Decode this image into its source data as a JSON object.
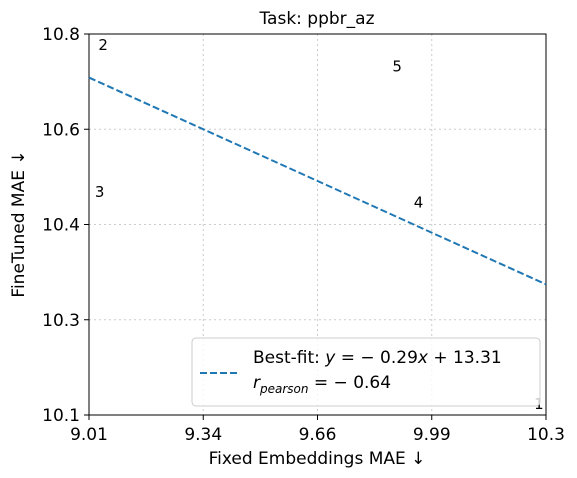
{
  "chart_data": {
    "type": "scatter",
    "title": "Task: ppbr_az",
    "xlabel": "Fixed Embeddings MAE ↓",
    "ylabel": "FineTuned MAE ↓",
    "xlim": [
      9.01,
      10.3
    ],
    "ylim": [
      10.1,
      10.8
    ],
    "x_ticks": [
      "9.01",
      "9.34",
      "9.66",
      "9.99",
      "10.3"
    ],
    "y_ticks": [
      "10.1",
      "10.3",
      "10.4",
      "10.6",
      "10.8"
    ],
    "grid": true,
    "points": [
      {
        "label": "1",
        "x": 10.28,
        "y": 10.12
      },
      {
        "label": "2",
        "x": 9.05,
        "y": 10.78
      },
      {
        "label": "3",
        "x": 9.04,
        "y": 10.51
      },
      {
        "label": "4",
        "x": 9.94,
        "y": 10.49
      },
      {
        "label": "5",
        "x": 9.88,
        "y": 10.74
      }
    ],
    "fit_line": {
      "color": "#1f77b4",
      "style": "dashed",
      "x": [
        9.01,
        10.3
      ],
      "y": [
        10.72,
        10.34
      ]
    },
    "legend": {
      "placement": "lower right",
      "line1": "Best-fit: ",
      "eq_y": "y",
      "eq_rest": " = − 0.29",
      "eq_x": "x",
      "eq_const": " + 13.31",
      "r_main": "r",
      "r_sub": "pearson",
      "r_rest": " = − 0.64"
    }
  }
}
